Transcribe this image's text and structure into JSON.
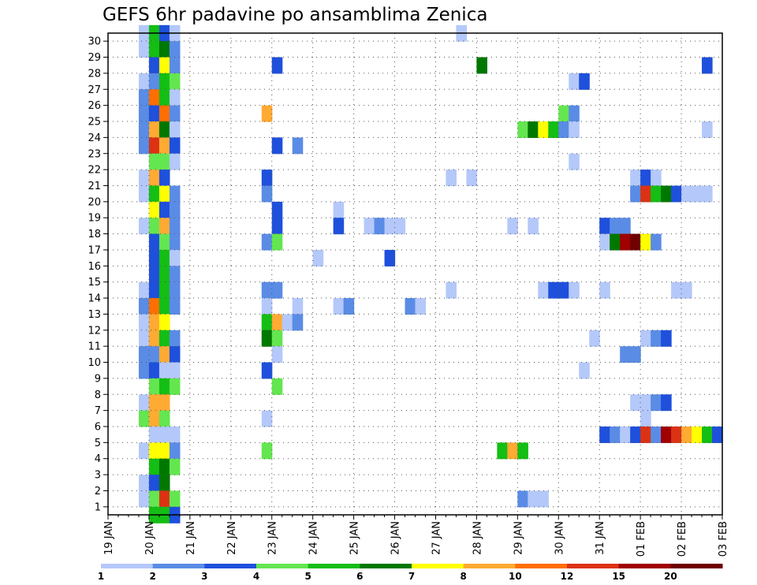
{
  "chart_data": {
    "type": "heatmap",
    "title": "GEFS 6hr padavine po ansamblima Zenica",
    "y_categories": [
      "1",
      "2",
      "3",
      "4",
      "5",
      "6",
      "7",
      "8",
      "9",
      "10",
      "11",
      "12",
      "13",
      "14",
      "15",
      "16",
      "17",
      "18",
      "19",
      "20",
      "21",
      "22",
      "23",
      "24",
      "25",
      "26",
      "27",
      "28",
      "29",
      "30"
    ],
    "x_ticks": [
      "19 JAN",
      "20 JAN",
      "21 JAN",
      "22 JAN",
      "23 JAN",
      "24 JAN",
      "25 JAN",
      "26 JAN",
      "27 JAN",
      "28 JAN",
      "29 JAN",
      "30 JAN",
      "31 JAN",
      "01 FEB",
      "02 FEB",
      "03 FEB"
    ],
    "x_range": [
      "19 JAN 00z",
      "03 FEB 00z"
    ],
    "time_step_hours": 6,
    "grid": true,
    "colorbar": {
      "ticks": [
        "1",
        "2",
        "3",
        "4",
        "5",
        "6",
        "7",
        "8",
        "10",
        "12",
        "15",
        "20"
      ],
      "colors": [
        "#b4c8fa",
        "#5a8ce6",
        "#1e50dc",
        "#64e650",
        "#14be14",
        "#007800",
        "#ffff00",
        "#ffaa32",
        "#ff6e00",
        "#dc3214",
        "#a00000",
        "#6e0000"
      ]
    },
    "cells": [
      {
        "m": 30,
        "t": 4,
        "v": 1
      },
      {
        "m": 30,
        "t": 5,
        "v": 5
      },
      {
        "m": 30,
        "t": 6,
        "v": 3
      },
      {
        "m": 30,
        "t": 7,
        "v": 1
      },
      {
        "m": 30,
        "t": 35,
        "v": 1
      },
      {
        "m": 29,
        "t": 4,
        "v": 1
      },
      {
        "m": 29,
        "t": 5,
        "v": 5
      },
      {
        "m": 29,
        "t": 6,
        "v": 6
      },
      {
        "m": 29,
        "t": 7,
        "v": 2
      },
      {
        "m": 28,
        "t": 5,
        "v": 3
      },
      {
        "m": 28,
        "t": 6,
        "v": 7
      },
      {
        "m": 28,
        "t": 7,
        "v": 2
      },
      {
        "m": 28,
        "t": 17,
        "v": 3
      },
      {
        "m": 28,
        "t": 37,
        "v": 6
      },
      {
        "m": 28,
        "t": 59,
        "v": 3
      },
      {
        "m": 27,
        "t": 4,
        "v": 1
      },
      {
        "m": 27,
        "t": 5,
        "v": 2
      },
      {
        "m": 27,
        "t": 6,
        "v": 5
      },
      {
        "m": 27,
        "t": 7,
        "v": 4
      },
      {
        "m": 27,
        "t": 46,
        "v": 1
      },
      {
        "m": 27,
        "t": 47,
        "v": 3
      },
      {
        "m": 26,
        "t": 4,
        "v": 2
      },
      {
        "m": 26,
        "t": 5,
        "v": 9
      },
      {
        "m": 26,
        "t": 6,
        "v": 5
      },
      {
        "m": 26,
        "t": 7,
        "v": 1
      },
      {
        "m": 25,
        "t": 4,
        "v": 2
      },
      {
        "m": 25,
        "t": 5,
        "v": 3
      },
      {
        "m": 25,
        "t": 6,
        "v": 9
      },
      {
        "m": 25,
        "t": 7,
        "v": 2
      },
      {
        "m": 25,
        "t": 16,
        "v": 8
      },
      {
        "m": 25,
        "t": 45,
        "v": 4
      },
      {
        "m": 25,
        "t": 46,
        "v": 2
      },
      {
        "m": 24,
        "t": 4,
        "v": 2
      },
      {
        "m": 24,
        "t": 5,
        "v": 8
      },
      {
        "m": 24,
        "t": 6,
        "v": 6
      },
      {
        "m": 24,
        "t": 7,
        "v": 1
      },
      {
        "m": 24,
        "t": 41,
        "v": 4
      },
      {
        "m": 24,
        "t": 42,
        "v": 6
      },
      {
        "m": 24,
        "t": 43,
        "v": 7
      },
      {
        "m": 24,
        "t": 44,
        "v": 5
      },
      {
        "m": 24,
        "t": 45,
        "v": 2
      },
      {
        "m": 24,
        "t": 46,
        "v": 1
      },
      {
        "m": 24,
        "t": 59,
        "v": 1
      },
      {
        "m": 23,
        "t": 4,
        "v": 2
      },
      {
        "m": 23,
        "t": 5,
        "v": 10
      },
      {
        "m": 23,
        "t": 6,
        "v": 8
      },
      {
        "m": 23,
        "t": 7,
        "v": 3
      },
      {
        "m": 23,
        "t": 17,
        "v": 3
      },
      {
        "m": 23,
        "t": 19,
        "v": 2
      },
      {
        "m": 22,
        "t": 5,
        "v": 4
      },
      {
        "m": 22,
        "t": 6,
        "v": 4
      },
      {
        "m": 22,
        "t": 7,
        "v": 1
      },
      {
        "m": 22,
        "t": 46,
        "v": 1
      },
      {
        "m": 21,
        "t": 4,
        "v": 1
      },
      {
        "m": 21,
        "t": 5,
        "v": 8
      },
      {
        "m": 21,
        "t": 6,
        "v": 3
      },
      {
        "m": 21,
        "t": 16,
        "v": 3
      },
      {
        "m": 21,
        "t": 34,
        "v": 1
      },
      {
        "m": 21,
        "t": 36,
        "v": 1
      },
      {
        "m": 21,
        "t": 52,
        "v": 1
      },
      {
        "m": 21,
        "t": 53,
        "v": 3
      },
      {
        "m": 21,
        "t": 54,
        "v": 1
      },
      {
        "m": 20,
        "t": 4,
        "v": 1
      },
      {
        "m": 20,
        "t": 5,
        "v": 5
      },
      {
        "m": 20,
        "t": 6,
        "v": 7
      },
      {
        "m": 20,
        "t": 7,
        "v": 2
      },
      {
        "m": 20,
        "t": 16,
        "v": 2
      },
      {
        "m": 20,
        "t": 52,
        "v": 2
      },
      {
        "m": 20,
        "t": 53,
        "v": 10
      },
      {
        "m": 20,
        "t": 54,
        "v": 5
      },
      {
        "m": 20,
        "t": 55,
        "v": 6
      },
      {
        "m": 20,
        "t": 56,
        "v": 3
      },
      {
        "m": 20,
        "t": 57,
        "v": 1
      },
      {
        "m": 20,
        "t": 58,
        "v": 1
      },
      {
        "m": 20,
        "t": 59,
        "v": 1
      },
      {
        "m": 19,
        "t": 5,
        "v": 7
      },
      {
        "m": 19,
        "t": 6,
        "v": 3
      },
      {
        "m": 19,
        "t": 7,
        "v": 2
      },
      {
        "m": 19,
        "t": 17,
        "v": 3
      },
      {
        "m": 19,
        "t": 23,
        "v": 1
      },
      {
        "m": 18,
        "t": 4,
        "v": 1
      },
      {
        "m": 18,
        "t": 5,
        "v": 4
      },
      {
        "m": 18,
        "t": 6,
        "v": 8
      },
      {
        "m": 18,
        "t": 7,
        "v": 2
      },
      {
        "m": 18,
        "t": 17,
        "v": 3
      },
      {
        "m": 18,
        "t": 23,
        "v": 3
      },
      {
        "m": 18,
        "t": 26,
        "v": 1
      },
      {
        "m": 18,
        "t": 27,
        "v": 2
      },
      {
        "m": 18,
        "t": 28,
        "v": 1
      },
      {
        "m": 18,
        "t": 29,
        "v": 1
      },
      {
        "m": 18,
        "t": 40,
        "v": 1
      },
      {
        "m": 18,
        "t": 42,
        "v": 1
      },
      {
        "m": 18,
        "t": 49,
        "v": 3
      },
      {
        "m": 18,
        "t": 50,
        "v": 2
      },
      {
        "m": 18,
        "t": 51,
        "v": 2
      },
      {
        "m": 17,
        "t": 5,
        "v": 3
      },
      {
        "m": 17,
        "t": 6,
        "v": 4
      },
      {
        "m": 17,
        "t": 7,
        "v": 2
      },
      {
        "m": 17,
        "t": 16,
        "v": 2
      },
      {
        "m": 17,
        "t": 17,
        "v": 4
      },
      {
        "m": 17,
        "t": 49,
        "v": 1
      },
      {
        "m": 17,
        "t": 50,
        "v": 6
      },
      {
        "m": 17,
        "t": 51,
        "v": 11
      },
      {
        "m": 17,
        "t": 52,
        "v": 12
      },
      {
        "m": 17,
        "t": 53,
        "v": 7
      },
      {
        "m": 17,
        "t": 54,
        "v": 2
      },
      {
        "m": 16,
        "t": 5,
        "v": 3
      },
      {
        "m": 16,
        "t": 6,
        "v": 5
      },
      {
        "m": 16,
        "t": 7,
        "v": 1
      },
      {
        "m": 16,
        "t": 21,
        "v": 1
      },
      {
        "m": 16,
        "t": 28,
        "v": 3
      },
      {
        "m": 15,
        "t": 5,
        "v": 3
      },
      {
        "m": 15,
        "t": 6,
        "v": 5
      },
      {
        "m": 15,
        "t": 7,
        "v": 2
      },
      {
        "m": 14,
        "t": 4,
        "v": 1
      },
      {
        "m": 14,
        "t": 5,
        "v": 3
      },
      {
        "m": 14,
        "t": 6,
        "v": 5
      },
      {
        "m": 14,
        "t": 7,
        "v": 2
      },
      {
        "m": 14,
        "t": 16,
        "v": 2
      },
      {
        "m": 14,
        "t": 17,
        "v": 2
      },
      {
        "m": 14,
        "t": 34,
        "v": 1
      },
      {
        "m": 14,
        "t": 43,
        "v": 1
      },
      {
        "m": 14,
        "t": 44,
        "v": 3
      },
      {
        "m": 14,
        "t": 45,
        "v": 3
      },
      {
        "m": 14,
        "t": 46,
        "v": 1
      },
      {
        "m": 14,
        "t": 49,
        "v": 1
      },
      {
        "m": 14,
        "t": 56,
        "v": 1
      },
      {
        "m": 14,
        "t": 57,
        "v": 1
      },
      {
        "m": 13,
        "t": 4,
        "v": 2
      },
      {
        "m": 13,
        "t": 5,
        "v": 9
      },
      {
        "m": 13,
        "t": 6,
        "v": 5
      },
      {
        "m": 13,
        "t": 7,
        "v": 2
      },
      {
        "m": 13,
        "t": 16,
        "v": 1
      },
      {
        "m": 13,
        "t": 19,
        "v": 1
      },
      {
        "m": 13,
        "t": 23,
        "v": 1
      },
      {
        "m": 13,
        "t": 24,
        "v": 2
      },
      {
        "m": 13,
        "t": 30,
        "v": 2
      },
      {
        "m": 13,
        "t": 31,
        "v": 1
      },
      {
        "m": 12,
        "t": 4,
        "v": 1
      },
      {
        "m": 12,
        "t": 5,
        "v": 8
      },
      {
        "m": 12,
        "t": 6,
        "v": 7
      },
      {
        "m": 12,
        "t": 16,
        "v": 5
      },
      {
        "m": 12,
        "t": 17,
        "v": 8
      },
      {
        "m": 12,
        "t": 18,
        "v": 1
      },
      {
        "m": 12,
        "t": 19,
        "v": 2
      },
      {
        "m": 11,
        "t": 4,
        "v": 1
      },
      {
        "m": 11,
        "t": 5,
        "v": 8
      },
      {
        "m": 11,
        "t": 6,
        "v": 5
      },
      {
        "m": 11,
        "t": 7,
        "v": 2
      },
      {
        "m": 11,
        "t": 16,
        "v": 6
      },
      {
        "m": 11,
        "t": 17,
        "v": 4
      },
      {
        "m": 11,
        "t": 48,
        "v": 1
      },
      {
        "m": 11,
        "t": 53,
        "v": 1
      },
      {
        "m": 11,
        "t": 54,
        "v": 2
      },
      {
        "m": 11,
        "t": 55,
        "v": 3
      },
      {
        "m": 10,
        "t": 4,
        "v": 2
      },
      {
        "m": 10,
        "t": 5,
        "v": 2
      },
      {
        "m": 10,
        "t": 6,
        "v": 8
      },
      {
        "m": 10,
        "t": 7,
        "v": 3
      },
      {
        "m": 10,
        "t": 17,
        "v": 1
      },
      {
        "m": 10,
        "t": 51,
        "v": 2
      },
      {
        "m": 10,
        "t": 52,
        "v": 2
      },
      {
        "m": 9,
        "t": 4,
        "v": 2
      },
      {
        "m": 9,
        "t": 5,
        "v": 3
      },
      {
        "m": 9,
        "t": 6,
        "v": 1
      },
      {
        "m": 9,
        "t": 7,
        "v": 1
      },
      {
        "m": 9,
        "t": 16,
        "v": 3
      },
      {
        "m": 9,
        "t": 47,
        "v": 1
      },
      {
        "m": 8,
        "t": 5,
        "v": 4
      },
      {
        "m": 8,
        "t": 6,
        "v": 5
      },
      {
        "m": 8,
        "t": 7,
        "v": 4
      },
      {
        "m": 8,
        "t": 17,
        "v": 4
      },
      {
        "m": 7,
        "t": 4,
        "v": 1
      },
      {
        "m": 7,
        "t": 5,
        "v": 8
      },
      {
        "m": 7,
        "t": 6,
        "v": 8
      },
      {
        "m": 7,
        "t": 52,
        "v": 1
      },
      {
        "m": 7,
        "t": 53,
        "v": 1
      },
      {
        "m": 7,
        "t": 54,
        "v": 2
      },
      {
        "m": 7,
        "t": 55,
        "v": 3
      },
      {
        "m": 6,
        "t": 4,
        "v": 4
      },
      {
        "m": 6,
        "t": 5,
        "v": 8
      },
      {
        "m": 6,
        "t": 6,
        "v": 4
      },
      {
        "m": 6,
        "t": 16,
        "v": 1
      },
      {
        "m": 6,
        "t": 53,
        "v": 1
      },
      {
        "m": 5,
        "t": 5,
        "v": 1
      },
      {
        "m": 5,
        "t": 6,
        "v": 1
      },
      {
        "m": 5,
        "t": 7,
        "v": 1
      },
      {
        "m": 5,
        "t": 49,
        "v": 3
      },
      {
        "m": 5,
        "t": 50,
        "v": 2
      },
      {
        "m": 5,
        "t": 51,
        "v": 1
      },
      {
        "m": 5,
        "t": 52,
        "v": 3
      },
      {
        "m": 5,
        "t": 53,
        "v": 10
      },
      {
        "m": 5,
        "t": 54,
        "v": 2
      },
      {
        "m": 5,
        "t": 55,
        "v": 11
      },
      {
        "m": 5,
        "t": 56,
        "v": 10
      },
      {
        "m": 5,
        "t": 57,
        "v": 8
      },
      {
        "m": 5,
        "t": 58,
        "v": 7
      },
      {
        "m": 5,
        "t": 59,
        "v": 5
      },
      {
        "m": 5,
        "t": 60,
        "v": 3
      },
      {
        "m": 4,
        "t": 4,
        "v": 1
      },
      {
        "m": 4,
        "t": 5,
        "v": 7
      },
      {
        "m": 4,
        "t": 6,
        "v": 7
      },
      {
        "m": 4,
        "t": 7,
        "v": 2
      },
      {
        "m": 4,
        "t": 16,
        "v": 4
      },
      {
        "m": 4,
        "t": 39,
        "v": 5
      },
      {
        "m": 4,
        "t": 40,
        "v": 8
      },
      {
        "m": 4,
        "t": 41,
        "v": 5
      },
      {
        "m": 3,
        "t": 5,
        "v": 5
      },
      {
        "m": 3,
        "t": 6,
        "v": 6
      },
      {
        "m": 3,
        "t": 7,
        "v": 4
      },
      {
        "m": 2,
        "t": 4,
        "v": 1
      },
      {
        "m": 2,
        "t": 5,
        "v": 3
      },
      {
        "m": 2,
        "t": 6,
        "v": 6
      },
      {
        "m": 1,
        "t": 4,
        "v": 1
      },
      {
        "m": 1,
        "t": 5,
        "v": 4
      },
      {
        "m": 1,
        "t": 6,
        "v": 10
      },
      {
        "m": 1,
        "t": 7,
        "v": 4
      },
      {
        "m": 1,
        "t": 41,
        "v": 2
      },
      {
        "m": 1,
        "t": 42,
        "v": 1
      },
      {
        "m": 1,
        "t": 43,
        "v": 1
      },
      {
        "m": 0,
        "t": 5,
        "v": 5
      },
      {
        "m": 0,
        "t": 6,
        "v": 5
      },
      {
        "m": 0,
        "t": 7,
        "v": 3
      }
    ]
  }
}
